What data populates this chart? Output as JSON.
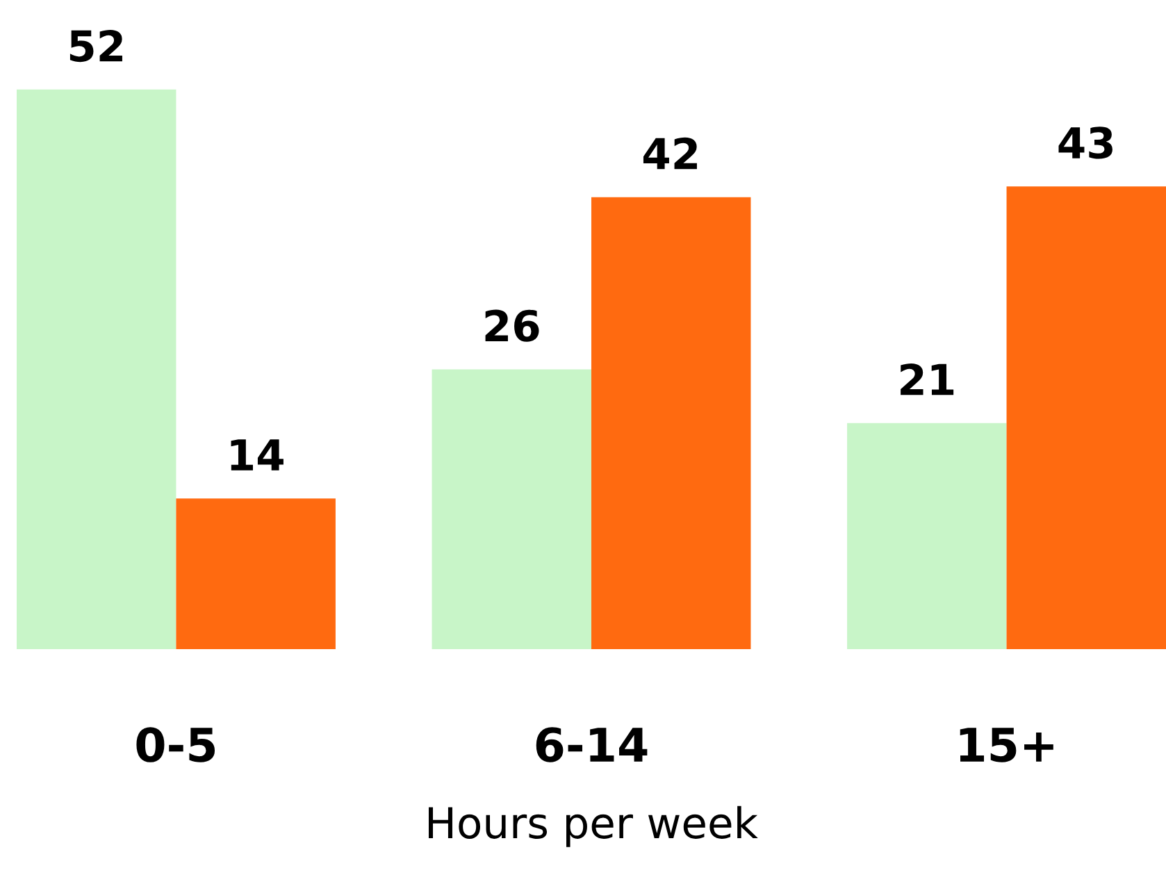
{
  "chart_data": {
    "type": "bar",
    "xlabel": "Hours per week",
    "categories": [
      "0-5",
      "6-14",
      "15+"
    ],
    "series": [
      {
        "color": "#c8f5c8",
        "values": [
          52,
          26,
          21
        ]
      },
      {
        "color": "#ff6a10",
        "values": [
          14,
          42,
          43
        ]
      }
    ],
    "data_labels": true,
    "grid": false,
    "legend": false
  }
}
